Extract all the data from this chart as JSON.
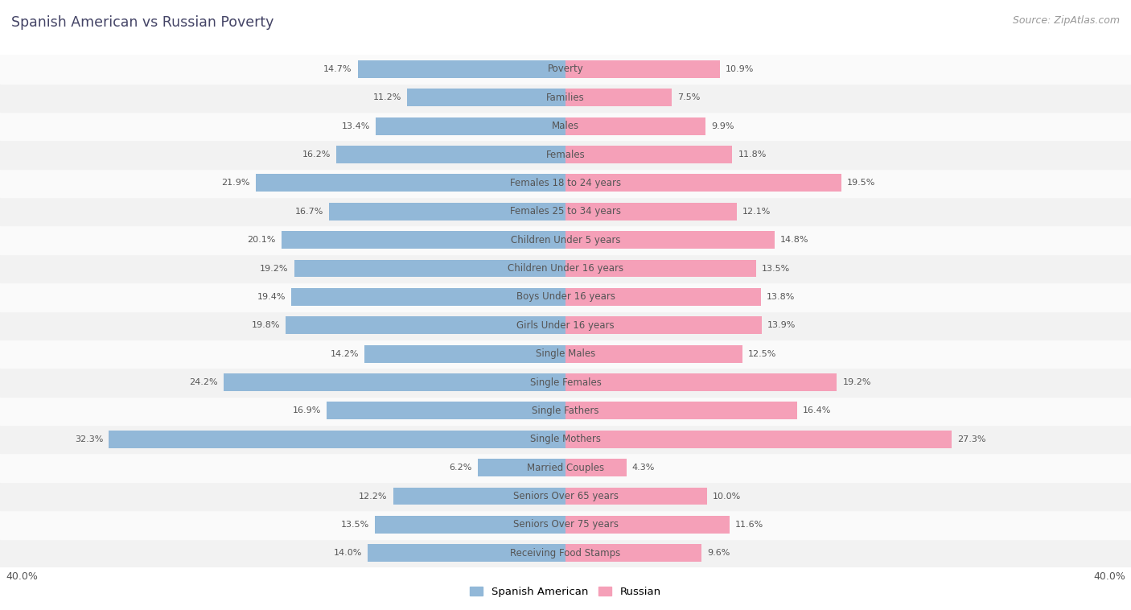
{
  "title": "Spanish American vs Russian Poverty",
  "source": "Source: ZipAtlas.com",
  "categories": [
    "Poverty",
    "Families",
    "Males",
    "Females",
    "Females 18 to 24 years",
    "Females 25 to 34 years",
    "Children Under 5 years",
    "Children Under 16 years",
    "Boys Under 16 years",
    "Girls Under 16 years",
    "Single Males",
    "Single Females",
    "Single Fathers",
    "Single Mothers",
    "Married Couples",
    "Seniors Over 65 years",
    "Seniors Over 75 years",
    "Receiving Food Stamps"
  ],
  "spanish_american": [
    14.7,
    11.2,
    13.4,
    16.2,
    21.9,
    16.7,
    20.1,
    19.2,
    19.4,
    19.8,
    14.2,
    24.2,
    16.9,
    32.3,
    6.2,
    12.2,
    13.5,
    14.0
  ],
  "russian": [
    10.9,
    7.5,
    9.9,
    11.8,
    19.5,
    12.1,
    14.8,
    13.5,
    13.8,
    13.9,
    12.5,
    19.2,
    16.4,
    27.3,
    4.3,
    10.0,
    11.6,
    9.6
  ],
  "spanish_color": "#92b8d8",
  "russian_color": "#f5a0b8",
  "row_bg_even": "#f2f2f2",
  "row_bg_odd": "#fafafa",
  "xlim": 40.0,
  "bar_height": 0.62,
  "title_color": "#444466",
  "label_color": "#555555",
  "value_color": "#555555",
  "cat_label_fontsize": 8.5,
  "value_fontsize": 8.0,
  "title_fontsize": 12.5,
  "source_fontsize": 9.0,
  "legend_fontsize": 9.5
}
